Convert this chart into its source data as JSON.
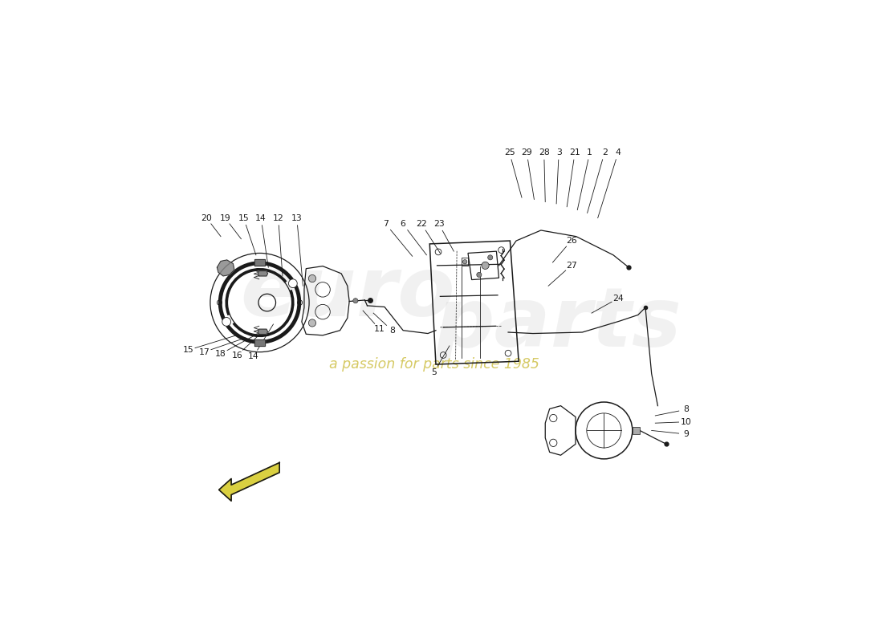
{
  "bg_color": "#ffffff",
  "line_color": "#1a1a1a",
  "gray_color": "#555555",
  "light_gray": "#aaaaaa",
  "watermark_color1": "#c8c8c8",
  "watermark_color2": "#c8b830",
  "watermark_text2": "a passion for parts since 1985",
  "labels_left_top": [
    [
      "20",
      1.52,
      5.72,
      1.75,
      5.42
    ],
    [
      "19",
      1.82,
      5.72,
      2.08,
      5.38
    ],
    [
      "15",
      2.12,
      5.72,
      2.32,
      5.12
    ],
    [
      "14",
      2.4,
      5.72,
      2.52,
      4.92
    ],
    [
      "12",
      2.68,
      5.72,
      2.75,
      4.78
    ],
    [
      "13",
      2.98,
      5.72,
      3.08,
      4.62
    ]
  ],
  "labels_left_bot": [
    [
      "15",
      1.22,
      3.58,
      2.0,
      3.82
    ],
    [
      "17",
      1.48,
      3.55,
      2.15,
      3.78
    ],
    [
      "18",
      1.75,
      3.52,
      2.3,
      3.82
    ],
    [
      "16",
      2.02,
      3.5,
      2.45,
      3.9
    ],
    [
      "14",
      2.28,
      3.48,
      2.6,
      4.0
    ]
  ],
  "labels_center": [
    [
      "7",
      4.42,
      5.62,
      4.85,
      5.1
    ],
    [
      "6",
      4.7,
      5.62,
      5.08,
      5.12
    ],
    [
      "22",
      5.0,
      5.62,
      5.3,
      5.15
    ],
    [
      "23",
      5.28,
      5.62,
      5.52,
      5.18
    ],
    [
      "11",
      4.32,
      3.92,
      4.05,
      4.22
    ],
    [
      "8",
      4.52,
      3.9,
      4.22,
      4.18
    ],
    [
      "5",
      5.2,
      3.22,
      5.45,
      3.65
    ]
  ],
  "labels_right_top": [
    [
      "25",
      6.42,
      6.78,
      6.62,
      6.05
    ],
    [
      "29",
      6.7,
      6.78,
      6.82,
      6.02
    ],
    [
      "28",
      6.98,
      6.78,
      7.0,
      5.98
    ],
    [
      "3",
      7.22,
      6.78,
      7.18,
      5.95
    ],
    [
      "21",
      7.48,
      6.78,
      7.35,
      5.9
    ],
    [
      "1",
      7.72,
      6.78,
      7.52,
      5.85
    ],
    [
      "2",
      7.96,
      6.78,
      7.68,
      5.8
    ],
    [
      "4",
      8.18,
      6.78,
      7.85,
      5.72
    ]
  ],
  "labels_right_mid": [
    [
      "26",
      7.42,
      5.35,
      7.12,
      5.0
    ],
    [
      "27",
      7.42,
      4.95,
      7.05,
      4.62
    ]
  ],
  "label_24": [
    "24",
    8.18,
    4.42,
    7.75,
    4.18
  ],
  "labels_br": [
    [
      "8",
      9.28,
      2.62,
      8.78,
      2.52
    ],
    [
      "10",
      9.28,
      2.42,
      8.78,
      2.4
    ],
    [
      "9",
      9.28,
      2.22,
      8.72,
      2.28
    ]
  ]
}
